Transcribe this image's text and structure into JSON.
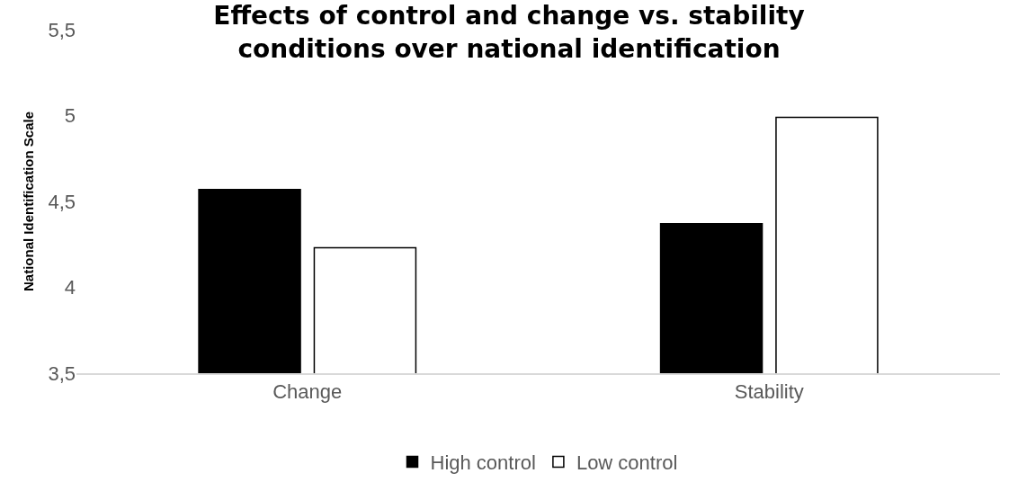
{
  "chart_data": {
    "type": "bar",
    "title": "Effects of control and change vs. stability\nconditions over national identification",
    "ylabel": "National Identification Scale",
    "categories": [
      "Change",
      "Stability"
    ],
    "series": [
      {
        "name": "High control",
        "color": "#000000",
        "values": [
          4.57,
          4.37
        ]
      },
      {
        "name": "Low control",
        "color": "#ffffff",
        "values": [
          4.23,
          4.99
        ]
      }
    ],
    "ylim": [
      3.5,
      5.5
    ],
    "yticks": [
      {
        "value": 3.5,
        "label": "3,5"
      },
      4,
      {
        "value": 4.5,
        "label": "4,5"
      },
      5,
      {
        "value": 5.5,
        "label": "5,5"
      }
    ],
    "grid": false,
    "legend": "bottom"
  }
}
